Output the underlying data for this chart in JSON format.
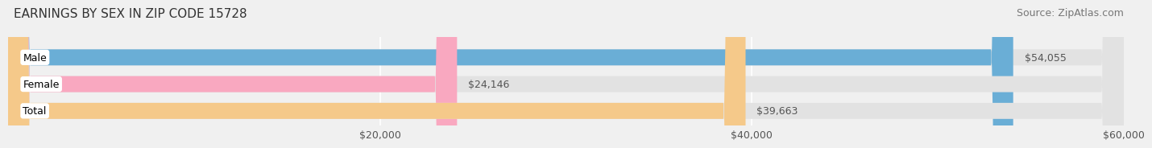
{
  "title": "EARNINGS BY SEX IN ZIP CODE 15728",
  "source": "Source: ZipAtlas.com",
  "categories": [
    "Male",
    "Female",
    "Total"
  ],
  "values": [
    54055,
    24146,
    39663
  ],
  "bar_colors": [
    "#6aaed6",
    "#f9a8c0",
    "#f5c98a"
  ],
  "bar_labels": [
    "$54,055",
    "$24,146",
    "$39,663"
  ],
  "xlim": [
    0,
    60000
  ],
  "xticks": [
    20000,
    40000,
    60000
  ],
  "xticklabels": [
    "$20,000",
    "$40,000",
    "$60,000"
  ],
  "background_color": "#f0f0f0",
  "bar_background_color": "#e2e2e2",
  "title_fontsize": 11,
  "source_fontsize": 9,
  "tick_fontsize": 9,
  "label_fontsize": 9,
  "category_fontsize": 9
}
